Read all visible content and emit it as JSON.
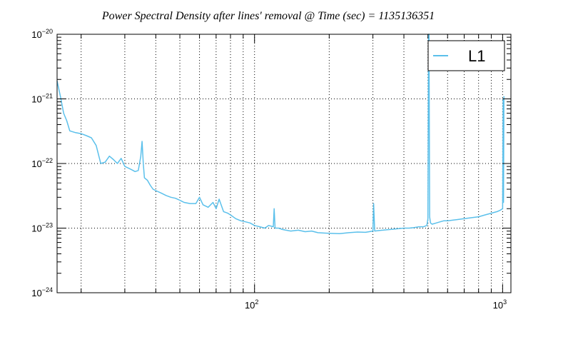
{
  "chart_data": {
    "type": "line",
    "title": "Power Spectral Density after lines' removal @ Time (sec) = 1135136351",
    "x_scale": "log",
    "y_scale": "log",
    "xlim": [
      16,
      1080
    ],
    "ylim": [
      1e-24,
      1e-20
    ],
    "grid": true,
    "legend_position": "top-right",
    "y_tick_labels": [
      {
        "value": 1e-20,
        "base": "10",
        "exp": "−20"
      },
      {
        "value": 1e-21,
        "base": "10",
        "exp": "−21"
      },
      {
        "value": 1e-22,
        "base": "10",
        "exp": "−22"
      },
      {
        "value": 1e-23,
        "base": "10",
        "exp": "−23"
      },
      {
        "value": 1e-24,
        "base": "10",
        "exp": "−24"
      }
    ],
    "x_tick_labels": [
      {
        "value": 100,
        "base": "10",
        "exp": "2"
      },
      {
        "value": 1000,
        "base": "10",
        "exp": "3"
      }
    ],
    "series": [
      {
        "name": "L1",
        "color": "#5bc0eb",
        "points": [
          [
            16.0,
            1.9e-21
          ],
          [
            16.5,
            1.1e-21
          ],
          [
            17.0,
            6e-22
          ],
          [
            17.5,
            4.6e-22
          ],
          [
            18.0,
            3.2e-22
          ],
          [
            19.0,
            3e-22
          ],
          [
            20.0,
            2.9e-22
          ],
          [
            21.0,
            2.7e-22
          ],
          [
            22.0,
            2.5e-22
          ],
          [
            23.0,
            1.9e-22
          ],
          [
            24.0,
            1e-22
          ],
          [
            25.0,
            1.05e-22
          ],
          [
            26.0,
            1.3e-22
          ],
          [
            27.0,
            1.15e-22
          ],
          [
            28.0,
            1e-22
          ],
          [
            29.0,
            1.2e-22
          ],
          [
            30.0,
            9e-23
          ],
          [
            31.0,
            8.5e-23
          ],
          [
            32.0,
            8e-23
          ],
          [
            33.0,
            7.5e-23
          ],
          [
            34.0,
            7.8e-23
          ],
          [
            34.8,
            1.3e-22
          ],
          [
            35.2,
            2.2e-22
          ],
          [
            35.6,
            1e-22
          ],
          [
            36.0,
            6e-23
          ],
          [
            37.0,
            5.5e-23
          ],
          [
            38.0,
            4.6e-23
          ],
          [
            39.0,
            4e-23
          ],
          [
            40.0,
            3.8e-23
          ],
          [
            42.0,
            3.5e-23
          ],
          [
            44.0,
            3.2e-23
          ],
          [
            46.0,
            3e-23
          ],
          [
            48.0,
            2.9e-23
          ],
          [
            50.0,
            2.7e-23
          ],
          [
            52.0,
            2.5e-23
          ],
          [
            55.0,
            2.4e-23
          ],
          [
            58.0,
            2.4e-23
          ],
          [
            60.0,
            3e-23
          ],
          [
            62.0,
            2.3e-23
          ],
          [
            65.0,
            2.1e-23
          ],
          [
            68.0,
            2.5e-23
          ],
          [
            70.0,
            2e-23
          ],
          [
            72.0,
            2.8e-23
          ],
          [
            75.0,
            1.8e-23
          ],
          [
            78.0,
            1.7e-23
          ],
          [
            80.0,
            1.6e-23
          ],
          [
            84.0,
            1.4e-23
          ],
          [
            88.0,
            1.3e-23
          ],
          [
            92.0,
            1.25e-23
          ],
          [
            96.0,
            1.2e-23
          ],
          [
            100.0,
            1.1e-23
          ],
          [
            105.0,
            1.05e-23
          ],
          [
            110.0,
            1e-23
          ],
          [
            114.0,
            1.1e-23
          ],
          [
            119.0,
            1.05e-23
          ],
          [
            120.0,
            2e-23
          ],
          [
            121.0,
            1e-23
          ],
          [
            125.0,
            1e-23
          ],
          [
            130.0,
            9.5e-24
          ],
          [
            140.0,
            9e-24
          ],
          [
            150.0,
            9.3e-24
          ],
          [
            160.0,
            8.8e-24
          ],
          [
            170.0,
            9e-24
          ],
          [
            180.0,
            8.5e-24
          ],
          [
            190.0,
            8.4e-24
          ],
          [
            200.0,
            8.3e-24
          ],
          [
            220.0,
            8.2e-24
          ],
          [
            240.0,
            8.5e-24
          ],
          [
            260.0,
            8.7e-24
          ],
          [
            280.0,
            8.6e-24
          ],
          [
            300.0,
            9e-24
          ],
          [
            302.0,
            2.4e-23
          ],
          [
            305.0,
            9e-24
          ],
          [
            320.0,
            9.2e-24
          ],
          [
            340.0,
            9.4e-24
          ],
          [
            360.0,
            9.6e-24
          ],
          [
            380.0,
            9.8e-24
          ],
          [
            400.0,
            1e-23
          ],
          [
            420.0,
            1e-23
          ],
          [
            440.0,
            1.02e-23
          ],
          [
            460.0,
            1.05e-23
          ],
          [
            480.0,
            1.05e-23
          ],
          [
            495.0,
            1.1e-23
          ],
          [
            500.0,
            1.4e-23
          ],
          [
            503.0,
            1e-20
          ],
          [
            505.0,
            1e-20
          ],
          [
            508.0,
            1.5e-23
          ],
          [
            512.0,
            1.2e-23
          ],
          [
            520.0,
            1.15e-23
          ],
          [
            540.0,
            1.2e-23
          ],
          [
            560.0,
            1.25e-23
          ],
          [
            580.0,
            1.3e-23
          ],
          [
            600.0,
            1.3e-23
          ],
          [
            650.0,
            1.35e-23
          ],
          [
            700.0,
            1.4e-23
          ],
          [
            750.0,
            1.45e-23
          ],
          [
            800.0,
            1.5e-23
          ],
          [
            850.0,
            1.6e-23
          ],
          [
            900.0,
            1.7e-23
          ],
          [
            950.0,
            1.8e-23
          ],
          [
            980.0,
            1.9e-23
          ],
          [
            1000.0,
            2e-23
          ],
          [
            1005.0,
            1e-21
          ],
          [
            1008.0,
            2.5e-23
          ],
          [
            1012.0,
            1.1e-21
          ]
        ]
      }
    ]
  }
}
